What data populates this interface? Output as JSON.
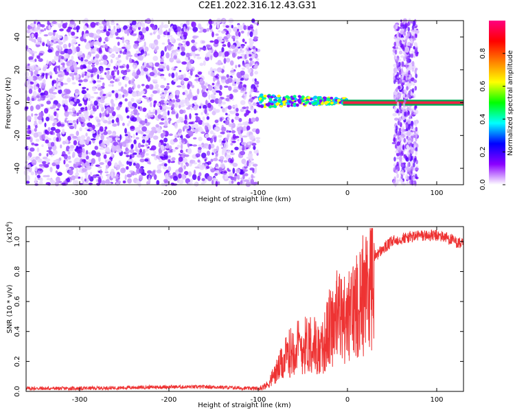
{
  "title": "C2E1.2022.316.12.43.G31",
  "chart_data": [
    {
      "type": "heatmap",
      "xlabel": "Height of straight line (km)",
      "ylabel": "Frequency (Hz)",
      "xlim": [
        -360,
        130
      ],
      "ylim": [
        -50,
        50
      ],
      "x_ticks": [
        -300,
        -200,
        -100,
        0,
        100
      ],
      "y_ticks": [
        -40,
        -20,
        0,
        20,
        40
      ],
      "colorbar": {
        "label": "Normalized spectral amplitude",
        "range": [
          0.0,
          1.0
        ],
        "ticks": [
          "0.0",
          "0.2",
          "0.4",
          "0.6",
          "0.8"
        ],
        "colors": [
          "#ffffff",
          "#8b00ff",
          "#0000ff",
          "#00ffff",
          "#00ff00",
          "#ffff00",
          "#ff8000",
          "#ff0000",
          "#ff0080"
        ]
      },
      "regions": [
        {
          "x_range": [
            -360,
            -100
          ],
          "description_values": {
            "freq_range": [
              -50,
              50
            ],
            "amplitude": 0.1
          }
        },
        {
          "x_range": [
            -100,
            0
          ],
          "description_values": {
            "center_freq": 0,
            "amplitude": 0.5
          }
        },
        {
          "x_range": [
            0,
            130
          ],
          "description_values": {
            "center_freq": 0,
            "amplitude": 0.9
          }
        },
        {
          "x_range": [
            52,
            78
          ],
          "description_values": {
            "freq_range": [
              -50,
              50
            ],
            "amplitude": 0.1
          }
        }
      ]
    },
    {
      "type": "line",
      "xlabel": "Height of straight line (km)",
      "ylabel": "SNR (10 * v/v)",
      "y_multiplier": "(x10^4)",
      "xlim": [
        -360,
        130
      ],
      "ylim": [
        0,
        1.1
      ],
      "x_ticks": [
        -300,
        -200,
        -100,
        0,
        100
      ],
      "y_ticks": [
        0.0,
        0.2,
        0.4,
        0.6,
        0.8,
        1.0
      ],
      "series": [
        {
          "color": "#ee3333",
          "x": [
            -360,
            -300,
            -200,
            -150,
            -110,
            -100,
            -90,
            -80,
            -70,
            -60,
            -50,
            -40,
            -30,
            -20,
            -10,
            0,
            10,
            20,
            30,
            40,
            50,
            60,
            70,
            80,
            90,
            100,
            110,
            120,
            130
          ],
          "y": [
            0.02,
            0.02,
            0.03,
            0.03,
            0.02,
            0.02,
            0.05,
            0.15,
            0.25,
            0.35,
            0.35,
            0.4,
            0.3,
            0.5,
            0.6,
            0.55,
            0.7,
            0.8,
            0.9,
            0.95,
            1.0,
            1.02,
            1.03,
            1.04,
            1.04,
            1.04,
            1.03,
            1.0,
            0.98
          ]
        }
      ]
    }
  ]
}
